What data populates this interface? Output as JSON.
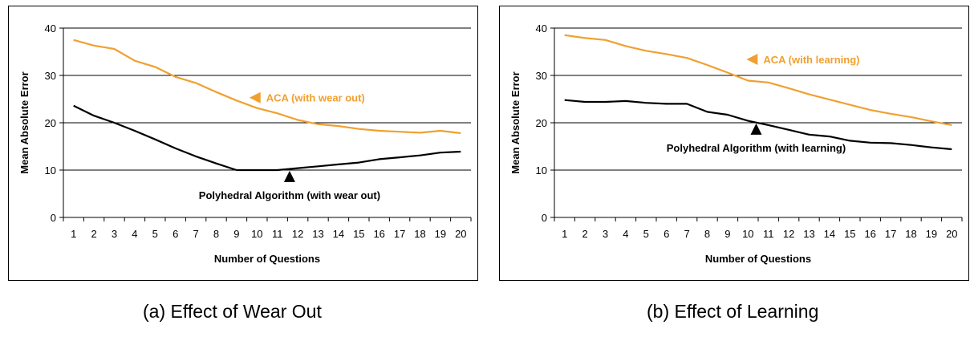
{
  "chart_data": [
    {
      "type": "line",
      "xlabel": "Number of Questions",
      "ylabel": "Mean Absolute Error",
      "ylim": [
        0,
        40
      ],
      "yticks": [
        0,
        10,
        20,
        30,
        40
      ],
      "categories": [
        "1",
        "2",
        "3",
        "4",
        "5",
        "6",
        "7",
        "8",
        "9",
        "10",
        "11",
        "12",
        "13",
        "14",
        "15",
        "16",
        "17",
        "18",
        "19",
        "20"
      ],
      "grid": "horizontal",
      "series": [
        {
          "name": "ACA (with wear out)",
          "color": "#f0a030",
          "values": [
            37.5,
            36.3,
            35.6,
            33.1,
            31.8,
            29.7,
            28.4,
            26.5,
            24.7,
            23.1,
            22.0,
            20.6,
            19.7,
            19.3,
            18.7,
            18.3,
            18.1,
            17.9,
            18.3,
            17.8
          ]
        },
        {
          "name": "Polyhedral Algorithm (with wear out)",
          "color": "#000000",
          "values": [
            23.6,
            21.5,
            20.0,
            18.3,
            16.5,
            14.6,
            12.9,
            11.4,
            10.0,
            10.0,
            10.0,
            10.4,
            10.8,
            11.2,
            11.6,
            12.3,
            12.7,
            13.1,
            13.7,
            13.9
          ]
        }
      ],
      "annotations": [
        {
          "text": "ACA (with wear out)",
          "series": 0,
          "marker": "left-triangle",
          "x": 9.9,
          "y": 25.3
        },
        {
          "text": "Polyhedral Algorithm (with wear out)",
          "series": 1,
          "marker": "up-triangle",
          "x": 11.6,
          "y": 8.5
        }
      ]
    },
    {
      "type": "line",
      "xlabel": "Number of Questions",
      "ylabel": "Mean Absolute Error",
      "ylim": [
        0,
        40
      ],
      "yticks": [
        0,
        10,
        20,
        30,
        40
      ],
      "categories": [
        "1",
        "2",
        "3",
        "4",
        "5",
        "6",
        "7",
        "8",
        "9",
        "10",
        "11",
        "12",
        "13",
        "14",
        "15",
        "16",
        "17",
        "18",
        "19",
        "20"
      ],
      "grid": "horizontal",
      "series": [
        {
          "name": "ACA (with learning)",
          "color": "#f0a030",
          "values": [
            38.5,
            37.9,
            37.5,
            36.2,
            35.2,
            34.5,
            33.7,
            32.2,
            30.6,
            28.9,
            28.5,
            27.3,
            26.0,
            24.9,
            23.8,
            22.7,
            21.9,
            21.2,
            20.3,
            19.5
          ]
        },
        {
          "name": "Polyhedral Algorithm (with learning)",
          "color": "#000000",
          "values": [
            24.8,
            24.4,
            24.4,
            24.6,
            24.2,
            24.0,
            24.0,
            22.3,
            21.7,
            20.4,
            19.5,
            18.5,
            17.5,
            17.1,
            16.2,
            15.8,
            15.7,
            15.3,
            14.8,
            14.4
          ]
        }
      ],
      "annotations": [
        {
          "text": "ACA (with learning)",
          "series": 0,
          "marker": "left-triangle",
          "x": 10.2,
          "y": 33.4
        },
        {
          "text": "Polyhedral Algorithm (with learning)",
          "series": 1,
          "marker": "up-triangle",
          "x": 10.4,
          "y": 18.5
        }
      ]
    }
  ],
  "captions": [
    "(a) Effect of Wear Out",
    "(b) Effect of Learning"
  ]
}
